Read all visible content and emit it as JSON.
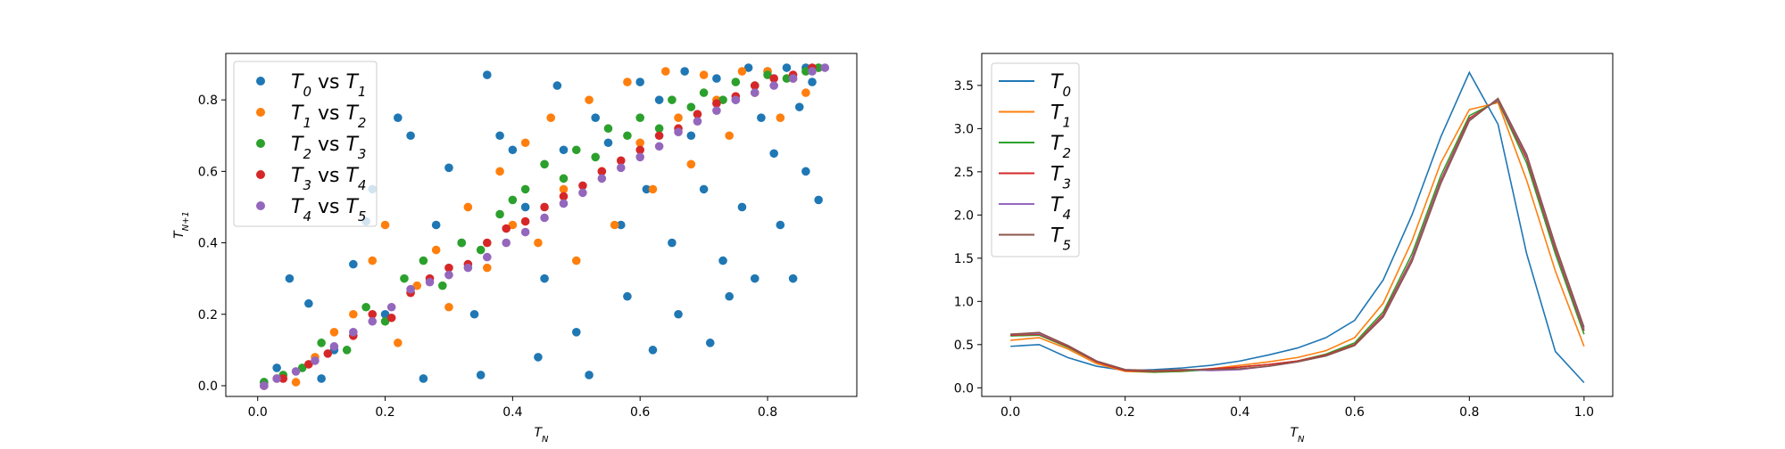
{
  "chart_data": [
    {
      "type": "scatter",
      "xlabel": "T_N",
      "ylabel": "T_{N+1}",
      "xlim": [
        -0.05,
        0.94
      ],
      "ylim": [
        -0.03,
        0.93
      ],
      "xticks": [
        "0.0",
        "0.2",
        "0.4",
        "0.6",
        "0.8"
      ],
      "yticks": [
        "0.0",
        "0.2",
        "0.4",
        "0.6",
        "0.8"
      ],
      "grid": false,
      "legend_position": "top-left",
      "series": [
        {
          "name": "T_0 vs T_1",
          "color": "#1f77b4",
          "points": [
            [
              0.01,
              0.01
            ],
            [
              0.03,
              0.05
            ],
            [
              0.05,
              0.3
            ],
            [
              0.08,
              0.23
            ],
            [
              0.1,
              0.02
            ],
            [
              0.12,
              0.1
            ],
            [
              0.15,
              0.34
            ],
            [
              0.17,
              0.46
            ],
            [
              0.18,
              0.55
            ],
            [
              0.2,
              0.2
            ],
            [
              0.22,
              0.75
            ],
            [
              0.24,
              0.7
            ],
            [
              0.26,
              0.02
            ],
            [
              0.28,
              0.45
            ],
            [
              0.3,
              0.61
            ],
            [
              0.32,
              0.4
            ],
            [
              0.34,
              0.2
            ],
            [
              0.35,
              0.03
            ],
            [
              0.36,
              0.87
            ],
            [
              0.38,
              0.7
            ],
            [
              0.4,
              0.66
            ],
            [
              0.42,
              0.5
            ],
            [
              0.44,
              0.08
            ],
            [
              0.45,
              0.3
            ],
            [
              0.47,
              0.84
            ],
            [
              0.48,
              0.66
            ],
            [
              0.5,
              0.15
            ],
            [
              0.52,
              0.03
            ],
            [
              0.53,
              0.75
            ],
            [
              0.55,
              0.68
            ],
            [
              0.57,
              0.45
            ],
            [
              0.58,
              0.25
            ],
            [
              0.6,
              0.85
            ],
            [
              0.61,
              0.55
            ],
            [
              0.62,
              0.1
            ],
            [
              0.63,
              0.8
            ],
            [
              0.65,
              0.4
            ],
            [
              0.66,
              0.2
            ],
            [
              0.67,
              0.88
            ],
            [
              0.68,
              0.7
            ],
            [
              0.7,
              0.55
            ],
            [
              0.71,
              0.12
            ],
            [
              0.72,
              0.86
            ],
            [
              0.73,
              0.35
            ],
            [
              0.74,
              0.25
            ],
            [
              0.75,
              0.8
            ],
            [
              0.76,
              0.5
            ],
            [
              0.77,
              0.89
            ],
            [
              0.78,
              0.3
            ],
            [
              0.79,
              0.75
            ],
            [
              0.8,
              0.88
            ],
            [
              0.81,
              0.65
            ],
            [
              0.82,
              0.45
            ],
            [
              0.83,
              0.89
            ],
            [
              0.84,
              0.3
            ],
            [
              0.85,
              0.78
            ],
            [
              0.86,
              0.6
            ],
            [
              0.86,
              0.89
            ],
            [
              0.87,
              0.85
            ],
            [
              0.88,
              0.52
            ]
          ]
        },
        {
          "name": "T_1 vs T_2",
          "color": "#ff7f0e",
          "points": [
            [
              0.01,
              0.0
            ],
            [
              0.03,
              0.02
            ],
            [
              0.06,
              0.01
            ],
            [
              0.09,
              0.08
            ],
            [
              0.12,
              0.15
            ],
            [
              0.15,
              0.2
            ],
            [
              0.18,
              0.35
            ],
            [
              0.2,
              0.45
            ],
            [
              0.22,
              0.12
            ],
            [
              0.25,
              0.28
            ],
            [
              0.28,
              0.38
            ],
            [
              0.3,
              0.22
            ],
            [
              0.33,
              0.5
            ],
            [
              0.36,
              0.33
            ],
            [
              0.38,
              0.6
            ],
            [
              0.4,
              0.45
            ],
            [
              0.42,
              0.68
            ],
            [
              0.44,
              0.4
            ],
            [
              0.46,
              0.75
            ],
            [
              0.48,
              0.55
            ],
            [
              0.5,
              0.35
            ],
            [
              0.52,
              0.8
            ],
            [
              0.54,
              0.6
            ],
            [
              0.56,
              0.45
            ],
            [
              0.58,
              0.85
            ],
            [
              0.6,
              0.68
            ],
            [
              0.62,
              0.55
            ],
            [
              0.64,
              0.88
            ],
            [
              0.66,
              0.75
            ],
            [
              0.68,
              0.62
            ],
            [
              0.7,
              0.87
            ],
            [
              0.72,
              0.8
            ],
            [
              0.74,
              0.7
            ],
            [
              0.76,
              0.88
            ],
            [
              0.78,
              0.82
            ],
            [
              0.8,
              0.88
            ],
            [
              0.82,
              0.75
            ],
            [
              0.84,
              0.86
            ],
            [
              0.86,
              0.82
            ],
            [
              0.88,
              0.89
            ]
          ]
        },
        {
          "name": "T_2 vs T_3",
          "color": "#2ca02c",
          "points": [
            [
              0.01,
              0.01
            ],
            [
              0.04,
              0.03
            ],
            [
              0.07,
              0.05
            ],
            [
              0.1,
              0.12
            ],
            [
              0.14,
              0.1
            ],
            [
              0.17,
              0.22
            ],
            [
              0.2,
              0.18
            ],
            [
              0.23,
              0.3
            ],
            [
              0.26,
              0.35
            ],
            [
              0.29,
              0.28
            ],
            [
              0.32,
              0.4
            ],
            [
              0.35,
              0.38
            ],
            [
              0.38,
              0.48
            ],
            [
              0.4,
              0.52
            ],
            [
              0.42,
              0.55
            ],
            [
              0.45,
              0.62
            ],
            [
              0.48,
              0.58
            ],
            [
              0.5,
              0.66
            ],
            [
              0.53,
              0.64
            ],
            [
              0.55,
              0.72
            ],
            [
              0.58,
              0.7
            ],
            [
              0.6,
              0.75
            ],
            [
              0.63,
              0.72
            ],
            [
              0.65,
              0.8
            ],
            [
              0.68,
              0.78
            ],
            [
              0.7,
              0.82
            ],
            [
              0.73,
              0.8
            ],
            [
              0.75,
              0.85
            ],
            [
              0.78,
              0.84
            ],
            [
              0.8,
              0.87
            ],
            [
              0.83,
              0.86
            ],
            [
              0.86,
              0.88
            ],
            [
              0.88,
              0.89
            ]
          ]
        },
        {
          "name": "T_3 vs T_4",
          "color": "#d62728",
          "points": [
            [
              0.01,
              0.0
            ],
            [
              0.04,
              0.02
            ],
            [
              0.08,
              0.06
            ],
            [
              0.11,
              0.09
            ],
            [
              0.15,
              0.14
            ],
            [
              0.18,
              0.2
            ],
            [
              0.21,
              0.19
            ],
            [
              0.24,
              0.26
            ],
            [
              0.27,
              0.3
            ],
            [
              0.3,
              0.33
            ],
            [
              0.33,
              0.34
            ],
            [
              0.36,
              0.4
            ],
            [
              0.39,
              0.44
            ],
            [
              0.42,
              0.46
            ],
            [
              0.45,
              0.5
            ],
            [
              0.48,
              0.53
            ],
            [
              0.51,
              0.56
            ],
            [
              0.54,
              0.6
            ],
            [
              0.57,
              0.63
            ],
            [
              0.6,
              0.66
            ],
            [
              0.63,
              0.7
            ],
            [
              0.66,
              0.72
            ],
            [
              0.69,
              0.76
            ],
            [
              0.72,
              0.79
            ],
            [
              0.75,
              0.81
            ],
            [
              0.78,
              0.84
            ],
            [
              0.81,
              0.86
            ],
            [
              0.84,
              0.87
            ],
            [
              0.87,
              0.89
            ]
          ]
        },
        {
          "name": "T_4 vs T_5",
          "color": "#9467bd",
          "points": [
            [
              0.01,
              0.0
            ],
            [
              0.03,
              0.02
            ],
            [
              0.06,
              0.04
            ],
            [
              0.09,
              0.07
            ],
            [
              0.12,
              0.11
            ],
            [
              0.15,
              0.15
            ],
            [
              0.18,
              0.18
            ],
            [
              0.21,
              0.22
            ],
            [
              0.24,
              0.27
            ],
            [
              0.27,
              0.29
            ],
            [
              0.3,
              0.31
            ],
            [
              0.33,
              0.33
            ],
            [
              0.36,
              0.36
            ],
            [
              0.39,
              0.4
            ],
            [
              0.42,
              0.43
            ],
            [
              0.45,
              0.47
            ],
            [
              0.48,
              0.51
            ],
            [
              0.51,
              0.54
            ],
            [
              0.54,
              0.58
            ],
            [
              0.57,
              0.61
            ],
            [
              0.6,
              0.64
            ],
            [
              0.63,
              0.67
            ],
            [
              0.66,
              0.71
            ],
            [
              0.69,
              0.74
            ],
            [
              0.72,
              0.77
            ],
            [
              0.75,
              0.8
            ],
            [
              0.78,
              0.82
            ],
            [
              0.81,
              0.84
            ],
            [
              0.84,
              0.86
            ],
            [
              0.87,
              0.88
            ],
            [
              0.89,
              0.89
            ]
          ]
        }
      ]
    },
    {
      "type": "line",
      "xlabel": "T_N",
      "ylabel": "",
      "xlim": [
        -0.05,
        1.05
      ],
      "ylim": [
        -0.1,
        3.87
      ],
      "xticks": [
        "0.0",
        "0.2",
        "0.4",
        "0.6",
        "0.8",
        "1.0"
      ],
      "yticks": [
        "0.0",
        "0.5",
        "1.0",
        "1.5",
        "2.0",
        "2.5",
        "3.0",
        "3.5"
      ],
      "grid": false,
      "legend_position": "top-left",
      "x": [
        0.0,
        0.05,
        0.1,
        0.15,
        0.2,
        0.25,
        0.3,
        0.35,
        0.4,
        0.45,
        0.5,
        0.55,
        0.6,
        0.65,
        0.7,
        0.75,
        0.8,
        0.85,
        0.9,
        0.95,
        1.0
      ],
      "series": [
        {
          "name": "T_0",
          "color": "#1f77b4",
          "values": [
            0.48,
            0.5,
            0.35,
            0.25,
            0.2,
            0.21,
            0.23,
            0.26,
            0.31,
            0.38,
            0.46,
            0.58,
            0.78,
            1.25,
            2.0,
            2.9,
            3.65,
            3.05,
            1.55,
            0.42,
            0.06
          ]
        },
        {
          "name": "T_1",
          "color": "#ff7f0e",
          "values": [
            0.55,
            0.58,
            0.45,
            0.28,
            0.19,
            0.18,
            0.19,
            0.22,
            0.26,
            0.3,
            0.35,
            0.43,
            0.58,
            0.98,
            1.7,
            2.6,
            3.22,
            3.3,
            2.4,
            1.35,
            0.48
          ]
        },
        {
          "name": "T_2",
          "color": "#2ca02c",
          "values": [
            0.6,
            0.61,
            0.47,
            0.3,
            0.2,
            0.18,
            0.19,
            0.21,
            0.24,
            0.27,
            0.31,
            0.39,
            0.52,
            0.88,
            1.55,
            2.45,
            3.15,
            3.32,
            2.6,
            1.55,
            0.62
          ]
        },
        {
          "name": "T_3",
          "color": "#d62728",
          "values": [
            0.61,
            0.62,
            0.48,
            0.3,
            0.2,
            0.19,
            0.2,
            0.22,
            0.24,
            0.27,
            0.31,
            0.38,
            0.5,
            0.85,
            1.5,
            2.4,
            3.12,
            3.33,
            2.65,
            1.6,
            0.66
          ]
        },
        {
          "name": "T_4",
          "color": "#9467bd",
          "values": [
            0.62,
            0.63,
            0.49,
            0.31,
            0.21,
            0.2,
            0.21,
            0.2,
            0.21,
            0.25,
            0.3,
            0.37,
            0.49,
            0.83,
            1.48,
            2.38,
            3.1,
            3.34,
            2.68,
            1.63,
            0.68
          ]
        },
        {
          "name": "T_5",
          "color": "#8c564b",
          "values": [
            0.62,
            0.64,
            0.49,
            0.31,
            0.21,
            0.2,
            0.21,
            0.21,
            0.22,
            0.25,
            0.3,
            0.37,
            0.49,
            0.82,
            1.46,
            2.36,
            3.09,
            3.35,
            2.7,
            1.65,
            0.7
          ]
        }
      ]
    }
  ]
}
